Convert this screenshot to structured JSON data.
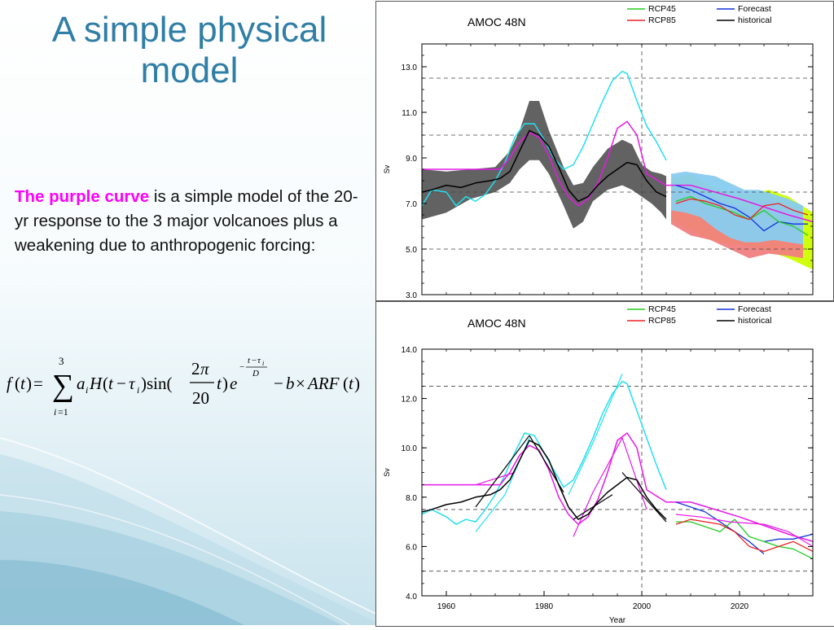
{
  "slide": {
    "title_line1": "A simple physical",
    "title_line2": "model",
    "highlight": "The purple curve",
    "body": " is a simple model of the 20-yr response to the 3 major volcanoes plus a weakening due to anthropogenic forcing:"
  },
  "formula": {
    "text": "f(t) = Σ_{i=1}^{3} a_i H(t − τ_i) sin(2π/20 t) e^{−(t−τ_i)/D} − b × ARF(t)"
  },
  "colors": {
    "cyan": "#22e0ee",
    "magenta": "#e619e6",
    "black": "#000000",
    "gray_band": "#5a5a5a",
    "rcp45": "#22cc22",
    "rcp85": "#ee2222",
    "forecast": "#1133dd",
    "yellow_band": "#ccff00",
    "red_band": "#f08080",
    "blue_band": "#88ccf0"
  },
  "chart_data": [
    {
      "type": "line",
      "title": "AMOC  48N",
      "ylabel": "Sv",
      "xlabel": "",
      "xlim": [
        1955,
        2035
      ],
      "ylim": [
        3.0,
        14.0
      ],
      "yticks": [
        "13.0",
        "11.0",
        "9.0",
        "7.0",
        "5.0",
        "3.0"
      ],
      "ytick_values": [
        13,
        11,
        9,
        7,
        5,
        3
      ],
      "xticks": [],
      "xtick_values": [],
      "dashed_y": [
        12.5,
        10,
        7.5,
        5
      ],
      "vline_x": 2000,
      "legend": [
        {
          "name": "RCP45",
          "color": "#22cc22"
        },
        {
          "name": "Forecast",
          "color": "#1133dd"
        },
        {
          "name": "RCP85",
          "color": "#ee2222"
        },
        {
          "name": "historical",
          "color": "#000000"
        }
      ],
      "bands": [
        {
          "color": "#5a5a5a",
          "x": [
            1955,
            1960,
            1965,
            1970,
            1973,
            1975,
            1977,
            1979,
            1981,
            1984,
            1986,
            1988,
            1990,
            1993,
            1996,
            1998,
            2000,
            2002,
            2004,
            2005
          ],
          "upper": [
            8.5,
            8.4,
            8.5,
            8.6,
            9.3,
            10.2,
            11.5,
            11.5,
            10.2,
            8.6,
            7.8,
            7.9,
            8.6,
            9.4,
            9.8,
            9.6,
            8.7,
            8.4,
            8.3,
            8.2
          ],
          "lower": [
            6.3,
            6.6,
            7.2,
            7.5,
            7.9,
            8.5,
            8.9,
            8.9,
            8.3,
            6.9,
            5.9,
            6.2,
            7.1,
            7.6,
            7.8,
            7.6,
            7.3,
            7.0,
            6.6,
            6.3
          ]
        },
        {
          "color": "#ccff00",
          "x": [
            2006,
            2010,
            2014,
            2018,
            2022,
            2026,
            2030,
            2035
          ],
          "upper": [
            8.1,
            8.3,
            7.8,
            7.4,
            7.4,
            7.6,
            7.3,
            6.6
          ],
          "lower": [
            6.3,
            5.8,
            5.4,
            5.2,
            5.1,
            4.9,
            4.6,
            4.1
          ]
        },
        {
          "color": "#f08080",
          "x": [
            2006,
            2010,
            2014,
            2018,
            2022,
            2026,
            2030,
            2033
          ],
          "upper": [
            7.6,
            7.8,
            7.4,
            7.0,
            6.8,
            7.2,
            6.8,
            6.6
          ],
          "lower": [
            6.1,
            5.6,
            5.4,
            5.0,
            4.6,
            4.8,
            4.7,
            4.6
          ]
        },
        {
          "color": "#88ccf0",
          "x": [
            2006,
            2009,
            2012,
            2015,
            2018,
            2021,
            2024,
            2027,
            2030,
            2033
          ],
          "upper": [
            8.3,
            8.4,
            8.3,
            8.2,
            7.9,
            7.6,
            7.6,
            7.4,
            7.2,
            6.9
          ],
          "lower": [
            6.7,
            6.6,
            6.4,
            5.9,
            5.5,
            5.3,
            5.3,
            5.4,
            5.3,
            5.2
          ]
        }
      ],
      "series": [
        {
          "color": "#22e0ee",
          "width": 1.5,
          "x": [
            1955,
            1957,
            1960,
            1962,
            1964,
            1966,
            1968,
            1970,
            1972,
            1974,
            1976,
            1978,
            1980,
            1982,
            1984,
            1986,
            1988,
            1990,
            1992,
            1994,
            1996,
            1997,
            1999,
            2001,
            2003,
            2005
          ],
          "y": [
            6.9,
            7.6,
            7.5,
            6.9,
            7.3,
            7.1,
            7.4,
            8.0,
            8.8,
            9.9,
            10.5,
            10.5,
            9.8,
            9.0,
            8.5,
            8.7,
            9.5,
            10.5,
            11.5,
            12.4,
            12.8,
            12.7,
            11.5,
            10.4,
            9.7,
            8.9
          ]
        },
        {
          "color": "#e619e6",
          "width": 1.5,
          "x": [
            1955,
            1965,
            1971,
            1973,
            1975,
            1977,
            1979,
            1981,
            1983,
            1985,
            1987,
            1989,
            1991,
            1993,
            1995,
            1997,
            1999,
            2001,
            2005,
            2010,
            2020,
            2030,
            2035
          ],
          "y": [
            8.5,
            8.5,
            8.5,
            9.0,
            9.7,
            10.1,
            9.9,
            9.1,
            8.0,
            7.3,
            6.9,
            7.2,
            7.9,
            9.0,
            10.3,
            10.6,
            10.0,
            8.3,
            7.8,
            7.8,
            7.2,
            6.5,
            6.2
          ]
        },
        {
          "color": "#000000",
          "width": 1.5,
          "x": [
            1955,
            1957,
            1960,
            1963,
            1966,
            1969,
            1971,
            1973,
            1975,
            1977,
            1979,
            1981,
            1983,
            1985,
            1987,
            1989,
            1991,
            1993,
            1995,
            1997,
            1999,
            2001,
            2003,
            2005
          ],
          "y": [
            7.5,
            7.6,
            7.8,
            7.7,
            7.9,
            8.0,
            8.1,
            8.4,
            9.3,
            10.2,
            10.0,
            9.5,
            8.6,
            7.6,
            7.1,
            7.3,
            7.8,
            8.2,
            8.5,
            8.8,
            8.7,
            8.0,
            7.5,
            7.3
          ]
        },
        {
          "color": "#1133dd",
          "width": 1.3,
          "x": [
            2007,
            2010,
            2013,
            2016,
            2019,
            2022,
            2025,
            2028,
            2031,
            2034
          ],
          "y": [
            7.8,
            7.6,
            7.3,
            7.0,
            6.8,
            6.4,
            5.8,
            6.2,
            6.1,
            6.1
          ]
        },
        {
          "color": "#22cc22",
          "width": 1.3,
          "x": [
            2007,
            2010,
            2013,
            2016,
            2019,
            2022,
            2025,
            2028,
            2031,
            2034
          ],
          "y": [
            7.1,
            7.3,
            7.0,
            6.8,
            6.6,
            6.3,
            6.7,
            6.2,
            6.0,
            5.6
          ]
        },
        {
          "color": "#ee2222",
          "width": 1.3,
          "x": [
            2007,
            2010,
            2013,
            2016,
            2019,
            2022,
            2025,
            2028,
            2031,
            2034
          ],
          "y": [
            7.0,
            7.2,
            7.1,
            6.9,
            6.5,
            6.3,
            6.9,
            7.0,
            6.7,
            6.5
          ]
        }
      ]
    },
    {
      "type": "line",
      "title": "AMOC  48N",
      "ylabel": "Sv",
      "xlabel": "Year",
      "xlim": [
        1955,
        2035
      ],
      "ylim": [
        4.0,
        14.0
      ],
      "yticks": [
        "14.0",
        "12.0",
        "10.0",
        "8.0",
        "6.0",
        "4.0"
      ],
      "ytick_values": [
        14,
        12,
        10,
        8,
        6,
        4
      ],
      "xticks": [
        "1960",
        "1980",
        "2000",
        "2020"
      ],
      "xtick_values": [
        1960,
        1980,
        2000,
        2020
      ],
      "dashed_y": [
        12.5,
        7.5,
        5
      ],
      "vline_x": 2000,
      "legend": [
        {
          "name": "RCP45",
          "color": "#22cc22"
        },
        {
          "name": "Forecast",
          "color": "#1133dd"
        },
        {
          "name": "RCP85",
          "color": "#ee2222"
        },
        {
          "name": "historical",
          "color": "#000000"
        }
      ],
      "bands": [],
      "series": [
        {
          "color": "#22e0ee",
          "width": 1.5,
          "x": [
            1955,
            1957,
            1960,
            1962,
            1964,
            1966,
            1968,
            1970,
            1972,
            1974,
            1976,
            1978,
            1980,
            1982,
            1984,
            1986,
            1988,
            1990,
            1992,
            1994,
            1996,
            1997,
            1999,
            2001,
            2003,
            2005
          ],
          "y": [
            7.3,
            7.5,
            7.2,
            6.9,
            7.1,
            7.0,
            7.5,
            8.1,
            8.9,
            9.8,
            10.6,
            10.5,
            9.8,
            9.1,
            8.4,
            8.7,
            9.5,
            10.4,
            11.4,
            12.2,
            12.7,
            12.6,
            11.5,
            10.4,
            9.3,
            8.3
          ]
        },
        {
          "color": "#22e0ee",
          "width": 1.2,
          "x": [
            1966,
            1972,
            1977
          ],
          "y": [
            6.6,
            8.1,
            10.4
          ]
        },
        {
          "color": "#22e0ee",
          "width": 1.2,
          "x": [
            1985,
            1990,
            1996
          ],
          "y": [
            8.1,
            10.2,
            13.0
          ]
        },
        {
          "color": "#e619e6",
          "width": 1.5,
          "x": [
            1955,
            1966,
            1971,
            1973,
            1975,
            1977,
            1979,
            1981,
            1983,
            1985,
            1987,
            1989,
            1991,
            1993,
            1995,
            1997,
            1999,
            2001,
            2005,
            2010,
            2020,
            2030,
            2035
          ],
          "y": [
            8.5,
            8.5,
            8.5,
            9.0,
            9.7,
            10.1,
            9.9,
            9.1,
            8.0,
            7.3,
            6.9,
            7.2,
            7.9,
            9.0,
            10.3,
            10.6,
            10.0,
            8.3,
            7.8,
            7.8,
            7.2,
            6.5,
            6.2
          ]
        },
        {
          "color": "#e619e6",
          "width": 1.2,
          "x": [
            1966,
            1974
          ],
          "y": [
            8.5,
            9.0
          ]
        },
        {
          "color": "#e619e6",
          "width": 1.2,
          "x": [
            1986,
            1990,
            1996,
            2001
          ],
          "y": [
            6.4,
            8.2,
            10.4,
            7.5
          ]
        },
        {
          "color": "#000000",
          "width": 1.5,
          "x": [
            1955,
            1957,
            1960,
            1963,
            1966,
            1969,
            1971,
            1973,
            1975,
            1977,
            1979,
            1981,
            1983,
            1985,
            1987,
            1989,
            1991,
            1993,
            1995,
            1997,
            1999,
            2001,
            2003,
            2005
          ],
          "y": [
            7.4,
            7.5,
            7.7,
            7.8,
            8.0,
            8.1,
            8.3,
            8.7,
            9.5,
            10.3,
            10.1,
            9.5,
            8.5,
            7.6,
            7.1,
            7.3,
            7.8,
            8.2,
            8.5,
            8.8,
            8.7,
            8.0,
            7.5,
            7.1
          ]
        },
        {
          "color": "#000000",
          "width": 1.2,
          "x": [
            1966,
            1977
          ],
          "y": [
            7.6,
            10.5
          ]
        },
        {
          "color": "#000000",
          "width": 1.2,
          "x": [
            1977,
            1984
          ],
          "y": [
            10.5,
            8.2
          ]
        },
        {
          "color": "#000000",
          "width": 1.2,
          "x": [
            1986,
            1994
          ],
          "y": [
            7.1,
            8.1
          ]
        },
        {
          "color": "#000000",
          "width": 1.2,
          "x": [
            1996,
            2005
          ],
          "y": [
            9.0,
            7.0
          ]
        },
        {
          "color": "#1133dd",
          "width": 1.3,
          "x": [
            2007,
            2010,
            2013,
            2016,
            2019,
            2022,
            2025
          ],
          "y": [
            7.8,
            7.6,
            7.4,
            7.0,
            6.6,
            6.2,
            5.7
          ]
        },
        {
          "color": "#1133dd",
          "width": 1.3,
          "x": [
            2025,
            2028,
            2031,
            2035
          ],
          "y": [
            6.2,
            6.3,
            6.3,
            6.5
          ]
        },
        {
          "color": "#22cc22",
          "width": 1.3,
          "x": [
            2007,
            2010,
            2013,
            2016,
            2019,
            2022,
            2025,
            2028,
            2031,
            2035
          ],
          "y": [
            7.0,
            7.0,
            6.8,
            6.6,
            7.1,
            6.4,
            6.2,
            6.0,
            5.9,
            5.5
          ]
        },
        {
          "color": "#ee2222",
          "width": 1.3,
          "x": [
            2007,
            2010,
            2013,
            2016,
            2019,
            2022,
            2025,
            2028,
            2031,
            2035
          ],
          "y": [
            6.9,
            7.1,
            7.0,
            6.9,
            6.6,
            6.0,
            5.8,
            6.0,
            6.2,
            5.8
          ]
        },
        {
          "color": "#e619e6",
          "width": 1.2,
          "x": [
            2007,
            2012,
            2018,
            2025,
            2030,
            2035
          ],
          "y": [
            7.3,
            7.2,
            7.0,
            6.9,
            6.6,
            6.0
          ]
        }
      ]
    }
  ]
}
